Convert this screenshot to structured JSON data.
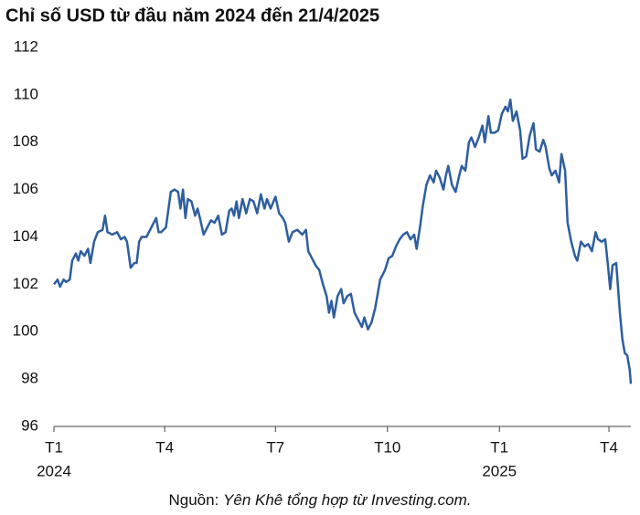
{
  "chart_data": {
    "type": "line",
    "title": "Chỉ số USD từ đầu năm 2024 đến 21/4/2025",
    "source_prefix": "Nguồn:",
    "source": "Yên Khê tổng hợp từ Investing.com.",
    "x": [
      0,
      3,
      5,
      8,
      10,
      13,
      15,
      18,
      20,
      22,
      25,
      28,
      30,
      33,
      36,
      40,
      42,
      44,
      48,
      52,
      55,
      58,
      60,
      63,
      66,
      68,
      70,
      72,
      76,
      80,
      84,
      86,
      88,
      92,
      96,
      99,
      102,
      104,
      106,
      108,
      110,
      113,
      116,
      118,
      120,
      123,
      126,
      129,
      132,
      135,
      138,
      141,
      144,
      146,
      148,
      150,
      152,
      155,
      158,
      161,
      164,
      167,
      170,
      173,
      175,
      178,
      182,
      185,
      188,
      190,
      193,
      196,
      200,
      204,
      207,
      209,
      212,
      215,
      218,
      221,
      224,
      226,
      228,
      230,
      233,
      236,
      238,
      241,
      244,
      247,
      250,
      253,
      255,
      258,
      261,
      264,
      268,
      272,
      275,
      278,
      281,
      284,
      287,
      290,
      293,
      296,
      298,
      301,
      303,
      306,
      309,
      312,
      314,
      317,
      320,
      322,
      324,
      327,
      330,
      333,
      335,
      338,
      341,
      343,
      346,
      349,
      352,
      354,
      357,
      359,
      362,
      365,
      368,
      371,
      373,
      375,
      377,
      380,
      383,
      385,
      388,
      391,
      394,
      396,
      399,
      402,
      404,
      407,
      409,
      412,
      415,
      417,
      420,
      422,
      425,
      428,
      430,
      433,
      436,
      439,
      442,
      445,
      447,
      450,
      453,
      455,
      457,
      459,
      462,
      465,
      467,
      469,
      471,
      473,
      474
    ],
    "series": [
      {
        "name": "USD",
        "color": "#2e5e9e",
        "values": [
          102.0,
          102.2,
          101.9,
          102.2,
          102.1,
          102.2,
          103.0,
          103.3,
          103.0,
          103.4,
          103.2,
          103.5,
          102.9,
          103.8,
          104.2,
          104.3,
          104.9,
          104.2,
          104.1,
          104.2,
          103.9,
          104.0,
          103.8,
          102.7,
          102.9,
          102.9,
          103.8,
          104.0,
          104.0,
          104.4,
          104.8,
          104.2,
          104.2,
          104.4,
          105.9,
          106.0,
          105.9,
          105.2,
          106.0,
          104.8,
          105.6,
          105.5,
          104.9,
          105.2,
          104.8,
          104.1,
          104.4,
          104.7,
          104.6,
          104.9,
          104.1,
          104.2,
          105.1,
          105.2,
          104.9,
          105.5,
          104.8,
          105.6,
          105.0,
          105.6,
          105.5,
          105.0,
          105.8,
          105.2,
          105.6,
          105.2,
          105.7,
          105.0,
          104.8,
          104.6,
          103.8,
          104.2,
          104.3,
          104.1,
          104.3,
          103.4,
          103.1,
          102.8,
          102.6,
          102.0,
          101.5,
          100.8,
          101.3,
          100.6,
          101.5,
          101.8,
          101.2,
          101.5,
          101.6,
          100.8,
          100.5,
          100.2,
          100.6,
          100.1,
          100.4,
          101.0,
          102.2,
          102.6,
          103.1,
          103.2,
          103.6,
          103.9,
          104.1,
          104.2,
          103.9,
          104.1,
          103.5,
          104.5,
          105.3,
          106.2,
          106.6,
          106.3,
          106.8,
          106.5,
          106.0,
          106.6,
          107.0,
          106.2,
          105.9,
          106.6,
          107.0,
          106.8,
          108.0,
          108.2,
          107.8,
          108.2,
          108.7,
          108.0,
          109.1,
          108.4,
          108.4,
          108.5,
          109.2,
          109.5,
          109.3,
          109.8,
          108.9,
          109.3,
          108.5,
          107.3,
          107.4,
          108.3,
          108.8,
          107.7,
          107.6,
          108.1,
          107.8,
          106.9,
          106.6,
          106.8,
          106.3,
          107.5,
          106.8,
          104.6,
          103.8,
          103.2,
          103.0,
          103.8,
          103.6,
          103.7,
          103.4,
          104.2,
          103.9,
          103.8,
          103.9,
          102.9,
          101.8,
          102.8,
          102.9,
          100.8,
          99.7,
          99.1,
          99.0,
          98.4,
          97.8
        ]
      }
    ],
    "xlim": [
      0,
      474
    ],
    "xticks": [
      {
        "value": 0,
        "label": "T1"
      },
      {
        "value": 91,
        "label": "T4"
      },
      {
        "value": 182,
        "label": "T7"
      },
      {
        "value": 274,
        "label": "T10"
      },
      {
        "value": 366,
        "label": "T1"
      },
      {
        "value": 456,
        "label": "T4"
      }
    ],
    "year_labels": [
      {
        "value": 0,
        "label": "2024"
      },
      {
        "value": 366,
        "label": "2025"
      }
    ],
    "ylim": [
      96,
      112
    ],
    "yticks": [
      96,
      98,
      100,
      102,
      104,
      106,
      108,
      110,
      112
    ],
    "grid": false
  }
}
